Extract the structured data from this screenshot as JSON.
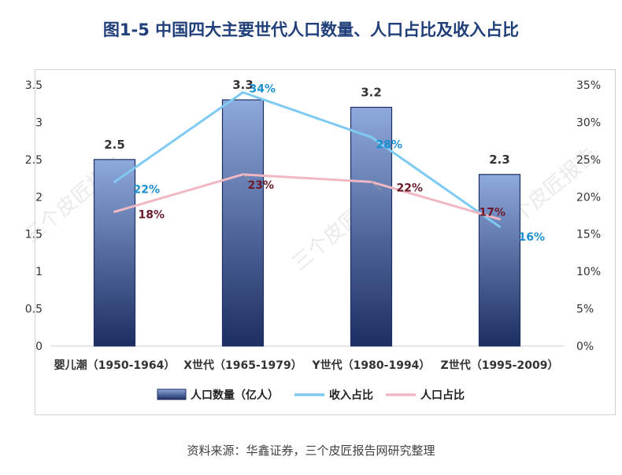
{
  "title": "图1-5  中国四大主要世代人口数量、人口占比及收入占比",
  "source": "资料来源：华鑫证券，三个皮匠报告网研究整理",
  "watermark": "三个皮匠报告",
  "colors": {
    "bar_top": "#8ea9dc",
    "bar_bottom": "#1c2e62",
    "bar_stroke": "#1c2e62",
    "income_line": "#7fcaf2",
    "income_label": "#1b8fd0",
    "pop_line": "#f1b8c3",
    "pop_label": "#6b1a2a",
    "axis_text": "#333333"
  },
  "chart_data": {
    "type": "bar+line",
    "categories": [
      "婴儿潮（1950-1964）",
      "X世代（1965-1979）",
      "Y世代（1980-1994）",
      "Z世代（1995-2009）"
    ],
    "ylim": [
      0,
      3.5
    ],
    "yticks": [
      "0",
      "0.5",
      "1",
      "1.5",
      "2",
      "2.5",
      "3",
      "3.5"
    ],
    "y2lim": [
      0,
      35
    ],
    "y2ticks": [
      "0%",
      "5%",
      "10%",
      "15%",
      "20%",
      "25%",
      "30%",
      "35%"
    ],
    "series": [
      {
        "name": "人口数量（亿人）",
        "kind": "bar",
        "axis": "left",
        "values": [
          2.5,
          3.3,
          3.2,
          2.3
        ],
        "labels": [
          "2.5",
          "3.3",
          "3.2",
          "2.3"
        ]
      },
      {
        "name": "收入占比",
        "kind": "line",
        "axis": "right",
        "values": [
          22,
          34,
          28,
          16
        ],
        "labels": [
          "22%",
          "34%",
          "28%",
          "16%"
        ]
      },
      {
        "name": "人口占比",
        "kind": "line",
        "axis": "right",
        "values": [
          18,
          23,
          22,
          17
        ],
        "labels": [
          "18%",
          "23%",
          "22%",
          "17%"
        ]
      }
    ],
    "legend": [
      "人口数量（亿人）",
      "收入占比",
      "人口占比"
    ],
    "legend_position": "bottom"
  }
}
